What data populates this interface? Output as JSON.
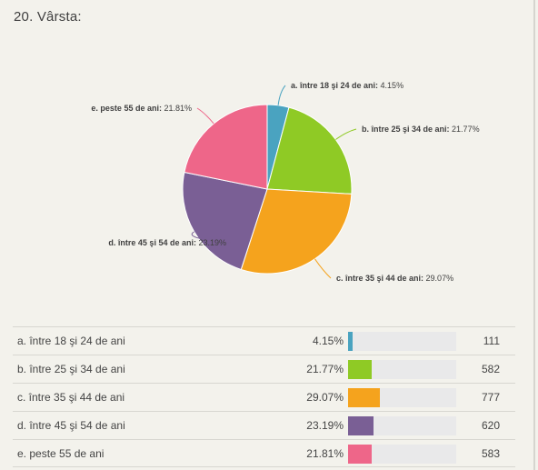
{
  "question": {
    "title": "20. Vârsta:"
  },
  "colors": {
    "background": "#f3f2ec",
    "bar_track": "#e9e9ea",
    "slice_border": "#ffffff"
  },
  "chart_data": {
    "type": "pie",
    "title": "20. Vârsta:",
    "categories": [
      "a. între 18 şi 24 de ani",
      "b. între 25 şi 34 de ani",
      "c. între 35 şi 44 de ani",
      "d. între 45 şi 54 de ani",
      "e. peste 55 de ani"
    ],
    "values": [
      4.15,
      21.77,
      29.07,
      23.19,
      21.81
    ],
    "counts": [
      111,
      582,
      777,
      620,
      583
    ],
    "percent_labels": [
      "4.15%",
      "21.77%",
      "29.07%",
      "23.19%",
      "21.81%"
    ],
    "colors": [
      "#4aa3c0",
      "#8fca25",
      "#f5a31d",
      "#7a5f95",
      "#ee6689"
    ],
    "legend": "none"
  },
  "table": {
    "rows": [
      {
        "label": "a. între 18 şi 24 de ani",
        "percent": "4.15%",
        "count": "111",
        "fraction": 0.0415,
        "color": "#4aa3c0"
      },
      {
        "label": "b. între 25 şi 34 de ani",
        "percent": "21.77%",
        "count": "582",
        "fraction": 0.2177,
        "color": "#8fca25"
      },
      {
        "label": "c. între 35 şi 44 de ani",
        "percent": "29.07%",
        "count": "777",
        "fraction": 0.2907,
        "color": "#f5a31d"
      },
      {
        "label": "d. între 45 şi 54 de ani",
        "percent": "23.19%",
        "count": "620",
        "fraction": 0.2319,
        "color": "#7a5f95"
      },
      {
        "label": "e. peste 55 de ani",
        "percent": "21.81%",
        "count": "583",
        "fraction": 0.2181,
        "color": "#ee6689"
      }
    ]
  }
}
